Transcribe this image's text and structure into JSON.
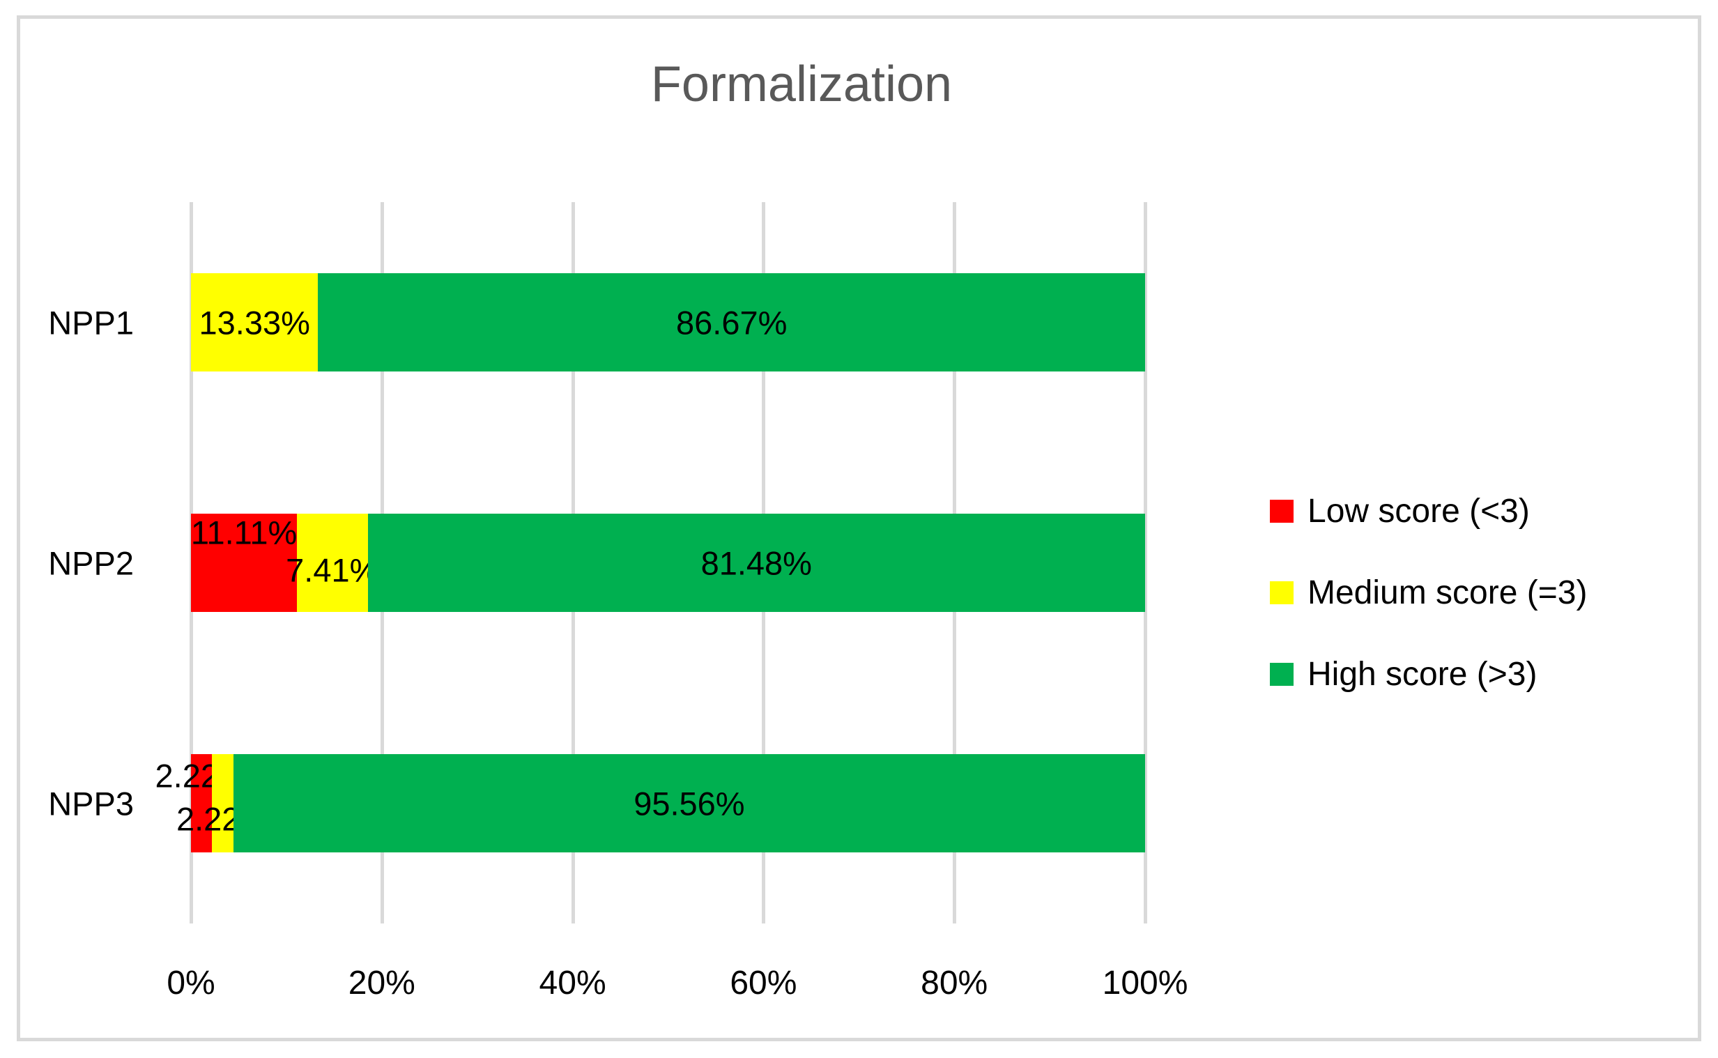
{
  "chart_data": {
    "type": "bar",
    "orientation": "horizontal",
    "stacked": true,
    "title": "Formalization",
    "title_color": "#595959",
    "categories": [
      "NPP1",
      "NPP2",
      "NPP3"
    ],
    "series": [
      {
        "name": "Low score (<3)",
        "color": "#FF0000",
        "values": [
          0,
          11.11,
          2.22
        ],
        "labels": [
          "",
          "11.11%",
          "2.22%"
        ],
        "label_dy": [
          0,
          -44,
          -40
        ]
      },
      {
        "name": "Medium score (=3)",
        "color": "#FFFF00",
        "values": [
          13.33,
          7.41,
          2.22
        ],
        "labels": [
          "13.33%",
          "7.41%",
          "2.22%"
        ],
        "label_dy": [
          0,
          10,
          22
        ]
      },
      {
        "name": "High score (>3)",
        "color": "#00B050",
        "values": [
          86.67,
          81.48,
          95.56
        ],
        "labels": [
          "86.67%",
          "81.48%",
          "95.56%"
        ],
        "label_dy": [
          0,
          0,
          0
        ]
      }
    ],
    "xlabel": "",
    "ylabel": "",
    "x_axis": {
      "min": 0,
      "max": 100,
      "tick_labels": [
        "0%",
        "20%",
        "40%",
        "60%",
        "80%",
        "100%"
      ]
    },
    "grid": true,
    "gridline_color": "#D9D9D9",
    "border_color": "#D9D9D9",
    "legend": {
      "position": "right"
    }
  }
}
